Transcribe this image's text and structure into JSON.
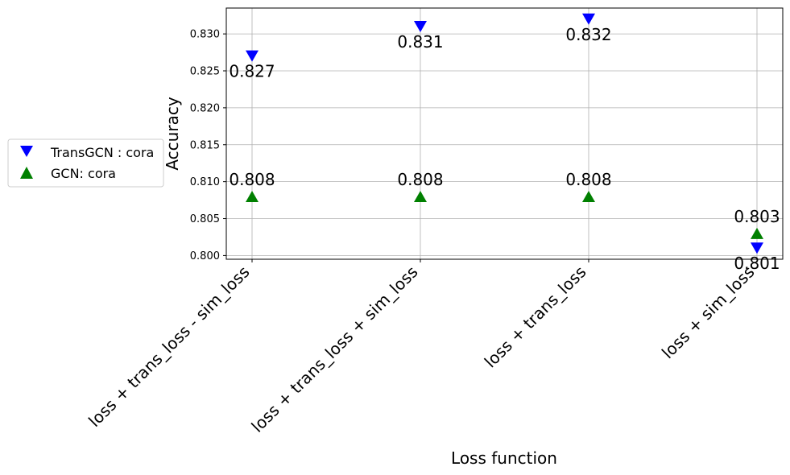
{
  "chart_data": {
    "type": "scatter",
    "title": "",
    "xlabel": "Loss function",
    "ylabel": "Accuracy",
    "categories": [
      "loss + trans_loss - sim_loss",
      "loss + trans_loss + sim_loss",
      "loss + trans_loss",
      "loss + sim_loss"
    ],
    "ylim": [
      0.7995,
      0.8335
    ],
    "yticks": [
      0.8,
      0.805,
      0.81,
      0.815,
      0.82,
      0.825,
      0.83
    ],
    "ytick_labels": [
      "0.800",
      "0.805",
      "0.810",
      "0.815",
      "0.820",
      "0.825",
      "0.830"
    ],
    "grid": true,
    "legend_position": "left",
    "series": [
      {
        "name": "TransGCN : cora",
        "marker": "triangle-down",
        "color": "#0000ff",
        "values": [
          0.827,
          0.831,
          0.832,
          0.801
        ],
        "labels": [
          "0.827",
          "0.831",
          "0.832",
          "0.801"
        ]
      },
      {
        "name": "GCN: cora",
        "marker": "triangle-up",
        "color": "#008000",
        "values": [
          0.808,
          0.808,
          0.808,
          0.803
        ],
        "labels": [
          "0.808",
          "0.808",
          "0.808",
          "0.803"
        ]
      }
    ]
  }
}
